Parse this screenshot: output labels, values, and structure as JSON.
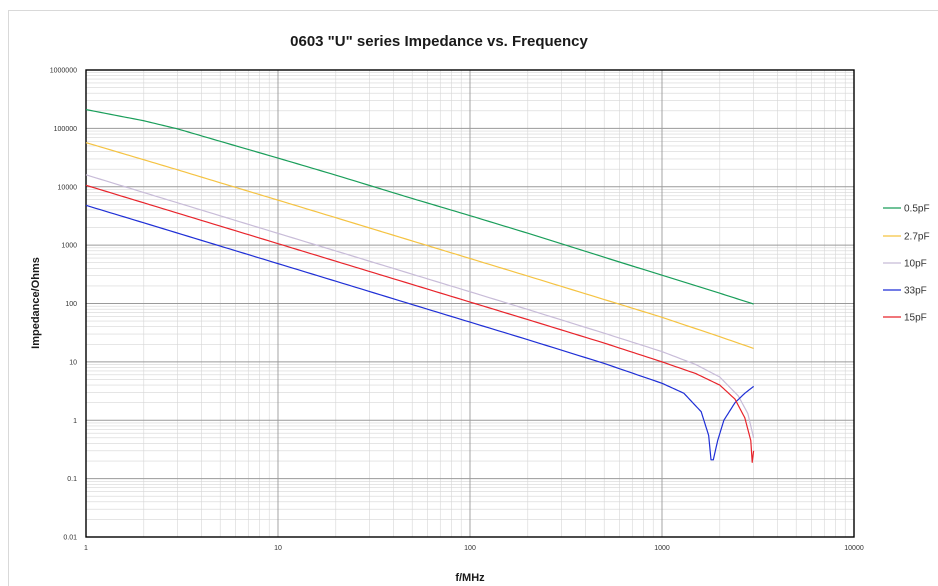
{
  "chart_data": {
    "type": "line",
    "title": "0603 \"U\" series Impedance vs. Frequency",
    "xlabel": "f/MHz",
    "ylabel": "Impedance/Ohms",
    "xscale": "log",
    "yscale": "log",
    "xlim": [
      1,
      10000
    ],
    "ylim": [
      0.01,
      1000000
    ],
    "grid": true,
    "legend_position": "right",
    "x_ticks": [
      "1",
      "10",
      "100",
      "1000",
      "10000"
    ],
    "y_ticks": [
      "0.01",
      "0.1",
      "1",
      "10",
      "100",
      "1000",
      "10000",
      "100000",
      "1000000"
    ],
    "series": [
      {
        "name": "0.5pF",
        "color": "#1a9e5a",
        "x": [
          1,
          2,
          3,
          5,
          10,
          20,
          50,
          100,
          200,
          500,
          1000,
          2000,
          3000
        ],
        "y": [
          210000,
          135000,
          98000,
          60000,
          31000,
          15800,
          6300,
          3200,
          1600,
          620,
          305,
          150,
          98
        ]
      },
      {
        "name": "2.7pF",
        "color": "#f5c342",
        "x": [
          1,
          2,
          3,
          5,
          10,
          20,
          50,
          100,
          200,
          500,
          1000,
          2000,
          3000
        ],
        "y": [
          57000,
          29000,
          19500,
          11700,
          5900,
          2950,
          1180,
          590,
          295,
          117,
          58,
          27,
          17
        ]
      },
      {
        "name": "10pF",
        "color": "#c8bcd8",
        "x": [
          1,
          2,
          5,
          10,
          20,
          50,
          100,
          200,
          500,
          1000,
          1500,
          2000,
          2500,
          2800,
          3000
        ],
        "y": [
          16000,
          7960,
          3180,
          1590,
          795,
          318,
          159,
          79,
          31,
          15,
          9,
          5.5,
          2.6,
          1.3,
          0.5
        ]
      },
      {
        "name": "33pF",
        "color": "#1f2fd6",
        "x": [
          1,
          2,
          5,
          10,
          20,
          50,
          100,
          200,
          500,
          1000,
          1300,
          1600,
          1750,
          1800,
          1850,
          1950,
          2100,
          2400,
          2700,
          3000
        ],
        "y": [
          4800,
          2410,
          964,
          482,
          241,
          96,
          48,
          24,
          9.4,
          4.3,
          2.9,
          1.4,
          0.55,
          0.21,
          0.21,
          0.45,
          1.0,
          2.0,
          2.9,
          3.8
        ]
      },
      {
        "name": "15pF",
        "color": "#e8242b",
        "x": [
          1,
          2,
          5,
          10,
          20,
          50,
          100,
          200,
          500,
          1000,
          1500,
          2000,
          2400,
          2700,
          2900,
          2950,
          3000
        ],
        "y": [
          10600,
          5300,
          2120,
          1060,
          530,
          212,
          106,
          53,
          21,
          10,
          6.3,
          4.0,
          2.3,
          1.1,
          0.45,
          0.19,
          0.3
        ]
      }
    ]
  }
}
